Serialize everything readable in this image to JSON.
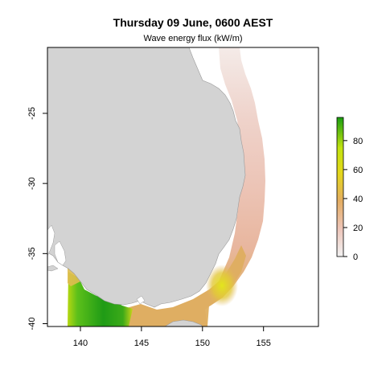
{
  "title": "Thursday 09 June, 0600 AEST",
  "subtitle": "Wave energy flux (kW/m)",
  "map": {
    "x_ticks": [
      {
        "value": 140,
        "label": "140"
      },
      {
        "value": 145,
        "label": "145"
      },
      {
        "value": 150,
        "label": "150"
      },
      {
        "value": 155,
        "label": "155"
      }
    ],
    "y_ticks": [
      {
        "value": -25,
        "label": "-25"
      },
      {
        "value": -30,
        "label": "-30"
      },
      {
        "value": -35,
        "label": "-35"
      },
      {
        "value": -40,
        "label": "-40"
      }
    ],
    "lon_range": [
      137.3,
      159.5
    ],
    "lat_range": [
      -40.2,
      -20.3
    ],
    "land_color": "#d3d3d3",
    "coast_color": "#a9a9a9"
  },
  "colorbar": {
    "min": 0,
    "max": 96,
    "ticks": [
      {
        "value": 0,
        "label": "0"
      },
      {
        "value": 20,
        "label": "20"
      },
      {
        "value": 40,
        "label": "40"
      },
      {
        "value": 60,
        "label": "60"
      },
      {
        "value": 80,
        "label": "80"
      }
    ],
    "colors": [
      "#f2f2f2",
      "#edc5b9",
      "#e4ad62",
      "#e4d71a",
      "#c2e30f",
      "#1a9e10"
    ]
  }
}
